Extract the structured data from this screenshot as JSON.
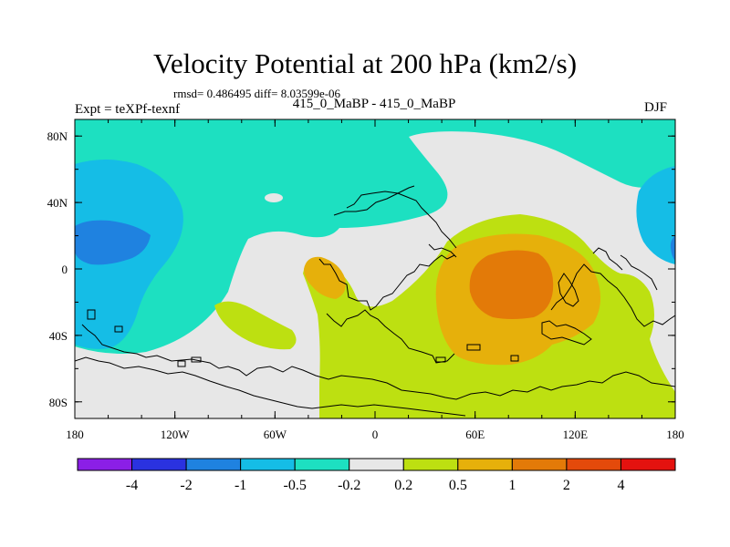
{
  "chart_data": {
    "type": "heatmap",
    "title": "Velocity Potential at 200 hPa (km2/s)",
    "stats": "rmsd= 0.486495 diff= 8.03599e-06",
    "left_label": "Expt = teXPf-texnf",
    "center_label": "415_0_MaBP - 415_0_MaBP",
    "right_label": "DJF",
    "x_ticks": [
      "180",
      "120W",
      "60W",
      "0",
      "60E",
      "120E",
      "180"
    ],
    "y_ticks": [
      "80N",
      "40N",
      "0",
      "40S",
      "80S"
    ],
    "xlim": [
      -180,
      180
    ],
    "ylim": [
      -90,
      90
    ],
    "colorbar": {
      "levels": [
        "-4",
        "-2",
        "-1",
        "-0.5",
        "-0.2",
        "0.2",
        "0.5",
        "1",
        "2",
        "4"
      ],
      "colors": [
        "#8b1fe6",
        "#2a32e0",
        "#1f82e0",
        "#15bde6",
        "#1de0c1",
        "#e7e7e7",
        "#bde011",
        "#e6b00b",
        "#e37a08",
        "#e44a0b",
        "#e4120f"
      ]
    },
    "fields": [
      {
        "name": "dominant-band",
        "level": "0.2",
        "value_range": "0.2 to 0.5",
        "color": "#bde011"
      },
      {
        "name": "tropical-max-indian-ocean",
        "value_range": "1 to 2",
        "color": "#e37a08"
      },
      {
        "name": "atlantic-anomaly",
        "value_range": "0.5 to 1",
        "color": "#e6b00b"
      },
      {
        "name": "north-pacific-min",
        "value_range": "-1 to -0.5",
        "color": "#15bde6"
      },
      {
        "name": "north-pacific-core",
        "value_range": "-2 to -1",
        "color": "#1f82e0"
      }
    ]
  }
}
